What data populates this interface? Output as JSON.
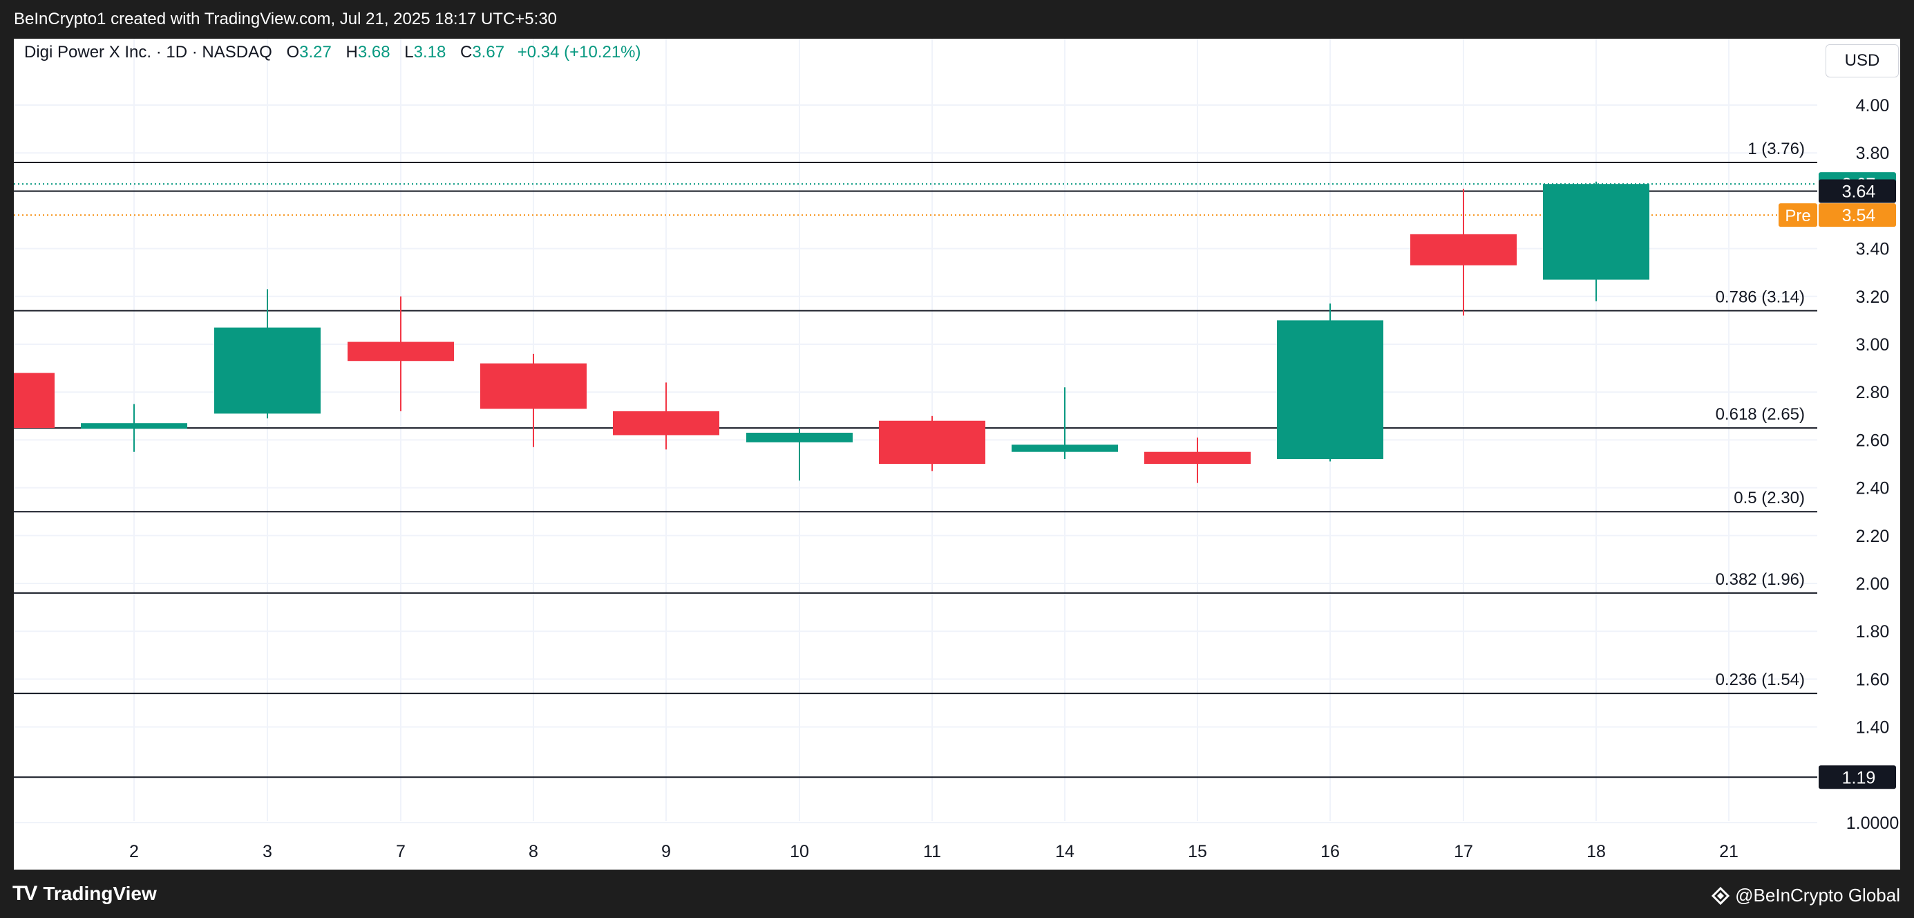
{
  "header": {
    "credit": "BeInCrypto1 created with TradingView.com, Jul 21, 2025 18:17 UTC+5:30"
  },
  "legend": {
    "symbol": "Digi Power X Inc. · 1D · NASDAQ",
    "o_label": "O",
    "o_value": "3.27",
    "h_label": "H",
    "h_value": "3.68",
    "l_label": "L",
    "l_value": "3.18",
    "c_label": "C",
    "c_value": "3.67",
    "change": "+0.34 (+10.21%)"
  },
  "currency_button": "USD",
  "footer": {
    "brand": "TradingView",
    "credit": "@BeInCrypto Global"
  },
  "colors": {
    "up": "#089981",
    "down": "#f23645",
    "pre": "#f7931a",
    "last": "#089981"
  },
  "chart_data": {
    "type": "candlestick",
    "ylim": [
      0.89,
      4.16
    ],
    "y_ticks": [
      "4.00",
      "3.80",
      "3.40",
      "3.20",
      "3.00",
      "2.80",
      "2.60",
      "2.40",
      "2.20",
      "2.00",
      "1.80",
      "1.60",
      "1.40",
      "1.0000"
    ],
    "x_labels": [
      "2",
      "3",
      "7",
      "8",
      "9",
      "10",
      "11",
      "14",
      "15",
      "16",
      "17",
      "18",
      "21"
    ],
    "candles": [
      {
        "x": "",
        "open": 2.88,
        "high": 2.88,
        "low": 2.65,
        "close": 2.65
      },
      {
        "x": "2",
        "open": 2.65,
        "high": 2.75,
        "low": 2.55,
        "close": 2.67
      },
      {
        "x": "3",
        "open": 2.71,
        "high": 3.23,
        "low": 2.69,
        "close": 3.07
      },
      {
        "x": "7",
        "open": 3.01,
        "high": 3.2,
        "low": 2.72,
        "close": 2.93
      },
      {
        "x": "8",
        "open": 2.92,
        "high": 2.96,
        "low": 2.57,
        "close": 2.73
      },
      {
        "x": "9",
        "open": 2.72,
        "high": 2.84,
        "low": 2.56,
        "close": 2.62
      },
      {
        "x": "10",
        "open": 2.59,
        "high": 2.65,
        "low": 2.43,
        "close": 2.63
      },
      {
        "x": "11",
        "open": 2.68,
        "high": 2.7,
        "low": 2.47,
        "close": 2.5
      },
      {
        "x": "14",
        "open": 2.55,
        "high": 2.82,
        "low": 2.52,
        "close": 2.58
      },
      {
        "x": "15",
        "open": 2.55,
        "high": 2.61,
        "low": 2.42,
        "close": 2.5
      },
      {
        "x": "16",
        "open": 2.52,
        "high": 3.17,
        "low": 2.51,
        "close": 3.1
      },
      {
        "x": "17",
        "open": 3.46,
        "high": 3.65,
        "low": 3.12,
        "close": 3.33
      },
      {
        "x": "18",
        "open": 3.27,
        "high": 3.68,
        "low": 3.18,
        "close": 3.67
      }
    ],
    "fib_levels": [
      {
        "label": "1 (3.76)",
        "value": 3.76
      },
      {
        "label": "",
        "value": 3.64
      },
      {
        "label": "0.786 (3.14)",
        "value": 3.14
      },
      {
        "label": "0.618 (2.65)",
        "value": 2.65
      },
      {
        "label": "0.5 (2.30)",
        "value": 2.3
      },
      {
        "label": "0.382 (1.96)",
        "value": 1.96
      },
      {
        "label": "0.236 (1.54)",
        "value": 1.54
      },
      {
        "label": "",
        "value": 1.19
      }
    ],
    "price_tags": [
      {
        "label": "",
        "text": "3.67",
        "value": 3.67,
        "style": "last"
      },
      {
        "label": "",
        "text": "3.64",
        "value": 3.64,
        "style": "dark"
      },
      {
        "label": "Pre",
        "text": "3.54",
        "value": 3.54,
        "style": "pre"
      },
      {
        "label": "",
        "text": "1.19",
        "value": 1.19,
        "style": "dark"
      }
    ],
    "last_price": 3.67,
    "pre_market_price": 3.54,
    "grid": true
  }
}
